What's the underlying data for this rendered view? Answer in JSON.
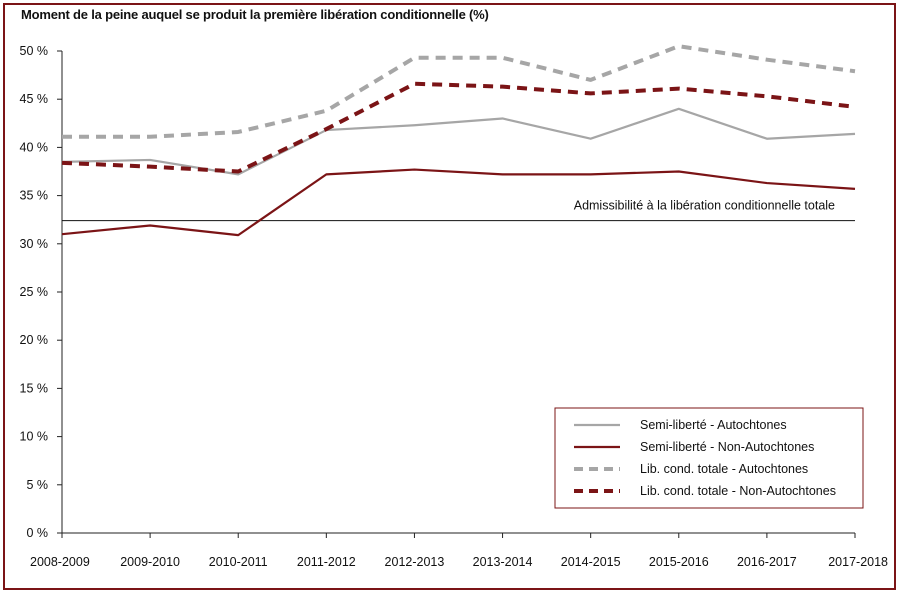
{
  "chart_data": {
    "type": "line",
    "title": "Moment de la peine auquel se produit la première libération conditionnelle (%)",
    "categories": [
      "2008-2009",
      "2009-2010",
      "2010-2011",
      "2011-2012",
      "2012-2013",
      "2013-2014",
      "2014-2015",
      "2015-2016",
      "2016-2017",
      "2017-2018"
    ],
    "y_ticks": [
      "0 %",
      "5 %",
      "10 %",
      "15 %",
      "20 %",
      "25 %",
      "30 %",
      "35 %",
      "40 %",
      "45 %",
      "50 %"
    ],
    "ylim": [
      0,
      50
    ],
    "grid": false,
    "legend_position": "bottom-right",
    "series": [
      {
        "name": "Semi-liberté - Autochtones",
        "color": "#a6a6a6",
        "style": "solid",
        "values": [
          38.5,
          38.7,
          37.2,
          41.8,
          42.3,
          43.0,
          40.9,
          44.0,
          40.9,
          41.4
        ]
      },
      {
        "name": "Semi-liberté - Non-Autochtones",
        "color": "#7b1416",
        "style": "solid",
        "values": [
          31.0,
          31.9,
          30.9,
          37.2,
          37.7,
          37.2,
          37.2,
          37.5,
          36.3,
          35.7
        ]
      },
      {
        "name": "Lib. cond. totale - Autochtones",
        "color": "#a6a6a6",
        "style": "dashed",
        "values": [
          41.1,
          41.1,
          41.6,
          43.8,
          49.3,
          49.3,
          47.0,
          50.5,
          49.1,
          47.9
        ]
      },
      {
        "name": "Lib. cond. totale - Non-Autochtones",
        "color": "#7b1416",
        "style": "dashed",
        "values": [
          38.4,
          38.0,
          37.5,
          41.9,
          46.6,
          46.3,
          45.6,
          46.1,
          45.3,
          44.2
        ]
      }
    ],
    "reference_line": {
      "label": "Admissibilité à la libération conditionnelle totale",
      "value": 32.4,
      "color": "#111111"
    }
  }
}
